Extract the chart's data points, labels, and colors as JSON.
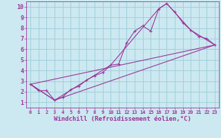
{
  "xlabel": "Windchill (Refroidissement éolien,°C)",
  "bg_color": "#cce8f0",
  "grid_color": "#99ccd8",
  "line_color": "#993399",
  "xlim": [
    -0.5,
    23.5
  ],
  "ylim": [
    0.5,
    10.5
  ],
  "xticks": [
    0,
    1,
    2,
    3,
    4,
    5,
    6,
    7,
    8,
    9,
    10,
    11,
    12,
    13,
    14,
    15,
    16,
    17,
    18,
    19,
    20,
    21,
    22,
    23
  ],
  "yticks": [
    1,
    2,
    3,
    4,
    5,
    6,
    7,
    8,
    9,
    10
  ],
  "line1_x": [
    0,
    1,
    2,
    3,
    4,
    5,
    6,
    7,
    8,
    9,
    10,
    11,
    12,
    13,
    14,
    15,
    16,
    17,
    18,
    19,
    20,
    21,
    22,
    23
  ],
  "line1_y": [
    2.7,
    2.1,
    2.1,
    1.2,
    1.5,
    2.2,
    2.5,
    3.1,
    3.5,
    3.8,
    4.5,
    4.6,
    6.6,
    7.7,
    8.2,
    7.7,
    9.8,
    10.3,
    9.5,
    8.5,
    7.8,
    7.2,
    7.0,
    6.4
  ],
  "line2_x": [
    0,
    3,
    10,
    16,
    17,
    20,
    23
  ],
  "line2_y": [
    2.7,
    1.2,
    4.5,
    9.8,
    10.3,
    7.8,
    6.4
  ],
  "line3_x": [
    0,
    23
  ],
  "line3_y": [
    2.7,
    6.4
  ],
  "line4_x": [
    0,
    3,
    23
  ],
  "line4_y": [
    2.7,
    1.2,
    6.4
  ]
}
